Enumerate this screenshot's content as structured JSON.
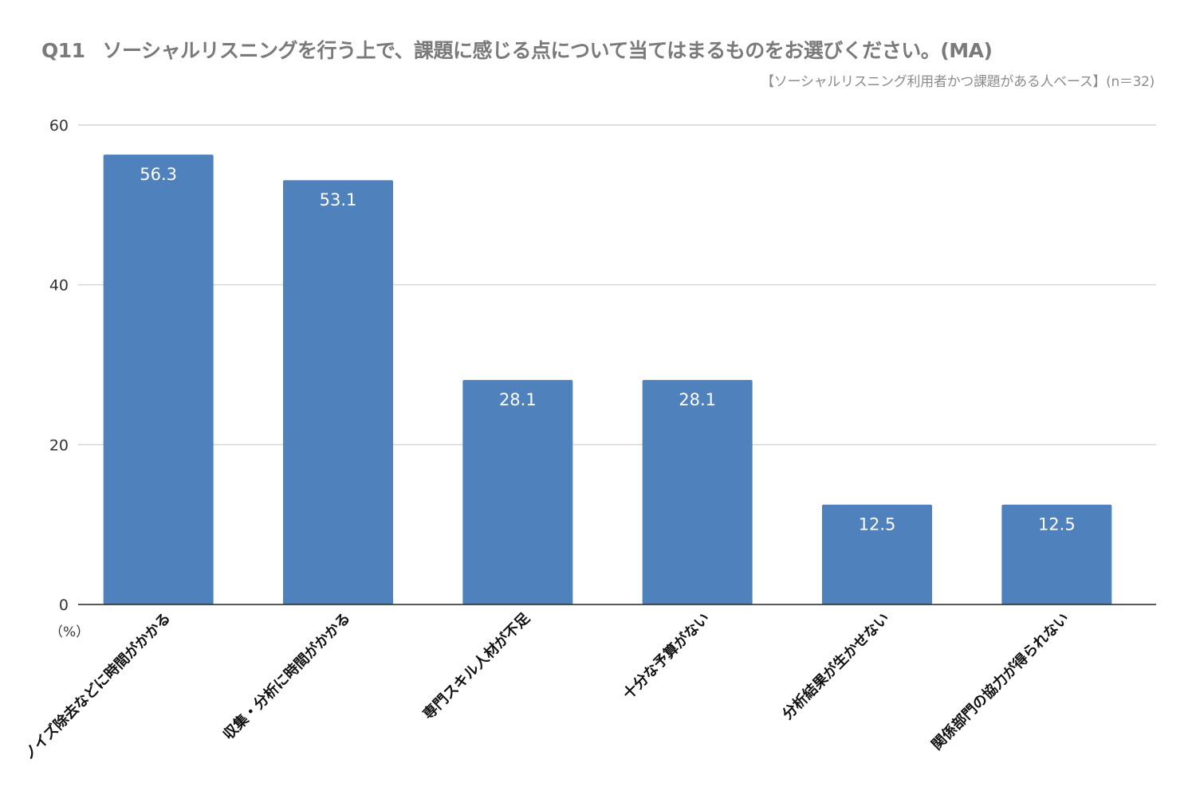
{
  "header": {
    "question_no": "Q11",
    "question_text": "ソーシャルリスニングを行う上で、課題に感じる点について当てはまるものをお選びください。(MA)",
    "base_note": "【ソーシャルリスニング利用者かつ課題がある人ベース】(n＝32)",
    "unit_label": "（%）"
  },
  "chart_data": {
    "type": "bar",
    "title": "ソーシャルリスニングを行う上で、課題に感じる点について当てはまるものをお選びください。(MA)",
    "categories": [
      "ノイズ除去などに時間がかかる",
      "収集・分析に時間がかかる",
      "専門スキル人材が不足",
      "十分な予算がない",
      "分析結果が生かせない",
      "関係部門の協力が得られない"
    ],
    "values": [
      56.3,
      53.1,
      28.1,
      28.1,
      12.5,
      12.5
    ],
    "ylabel": "（%）",
    "ylim": [
      0,
      60
    ],
    "yticks": [
      0,
      20,
      40,
      60
    ],
    "grid": true,
    "data_labels": true,
    "bar_color": "#4f81bd",
    "grid_color": "#cccccc",
    "label_color": "#ffffff"
  }
}
